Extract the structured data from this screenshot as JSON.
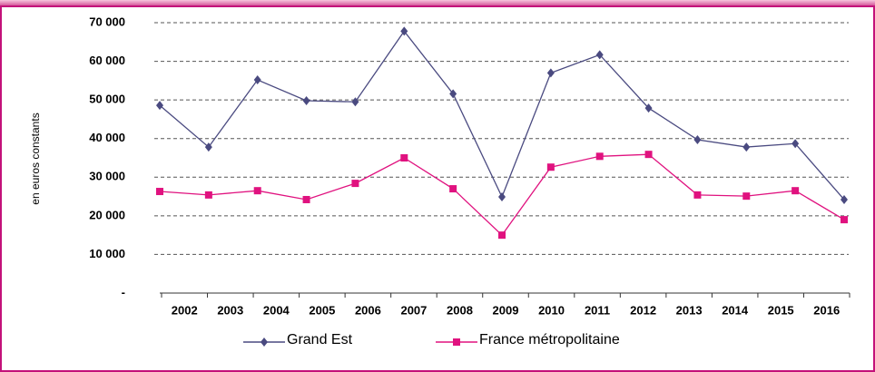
{
  "chart_data": {
    "type": "line",
    "y_label": "en euros constants",
    "categories": [
      "2002",
      "2003",
      "2004",
      "2005",
      "2006",
      "2007",
      "2008",
      "2009",
      "2010",
      "2011",
      "2012",
      "2013",
      "2014",
      "2015",
      "2016"
    ],
    "series": [
      {
        "name": "Grand Est",
        "color": "#4a4a80",
        "marker": "diamond",
        "values": [
          48600,
          37800,
          55200,
          49800,
          49500,
          67800,
          51600,
          24900,
          57000,
          61700,
          47900,
          39700,
          37800,
          38700,
          24200
        ]
      },
      {
        "name": "France métropolitaine",
        "color": "#e0127f",
        "marker": "square",
        "values": [
          26300,
          25400,
          26500,
          24200,
          28400,
          35000,
          27000,
          15000,
          32600,
          35400,
          35900,
          25400,
          25100,
          26500,
          19000
        ]
      }
    ],
    "ylim": [
      0,
      70000
    ],
    "yticks": [
      {
        "value": 0,
        "label": "-"
      },
      {
        "value": 10000,
        "label": "10 000"
      },
      {
        "value": 20000,
        "label": "20 000"
      },
      {
        "value": 30000,
        "label": "30 000"
      },
      {
        "value": 40000,
        "label": "40 000"
      },
      {
        "value": 50000,
        "label": "50 000"
      },
      {
        "value": 60000,
        "label": "60 000"
      },
      {
        "value": 70000,
        "label": "70 000"
      }
    ],
    "grid": true,
    "legend": "bottom"
  }
}
